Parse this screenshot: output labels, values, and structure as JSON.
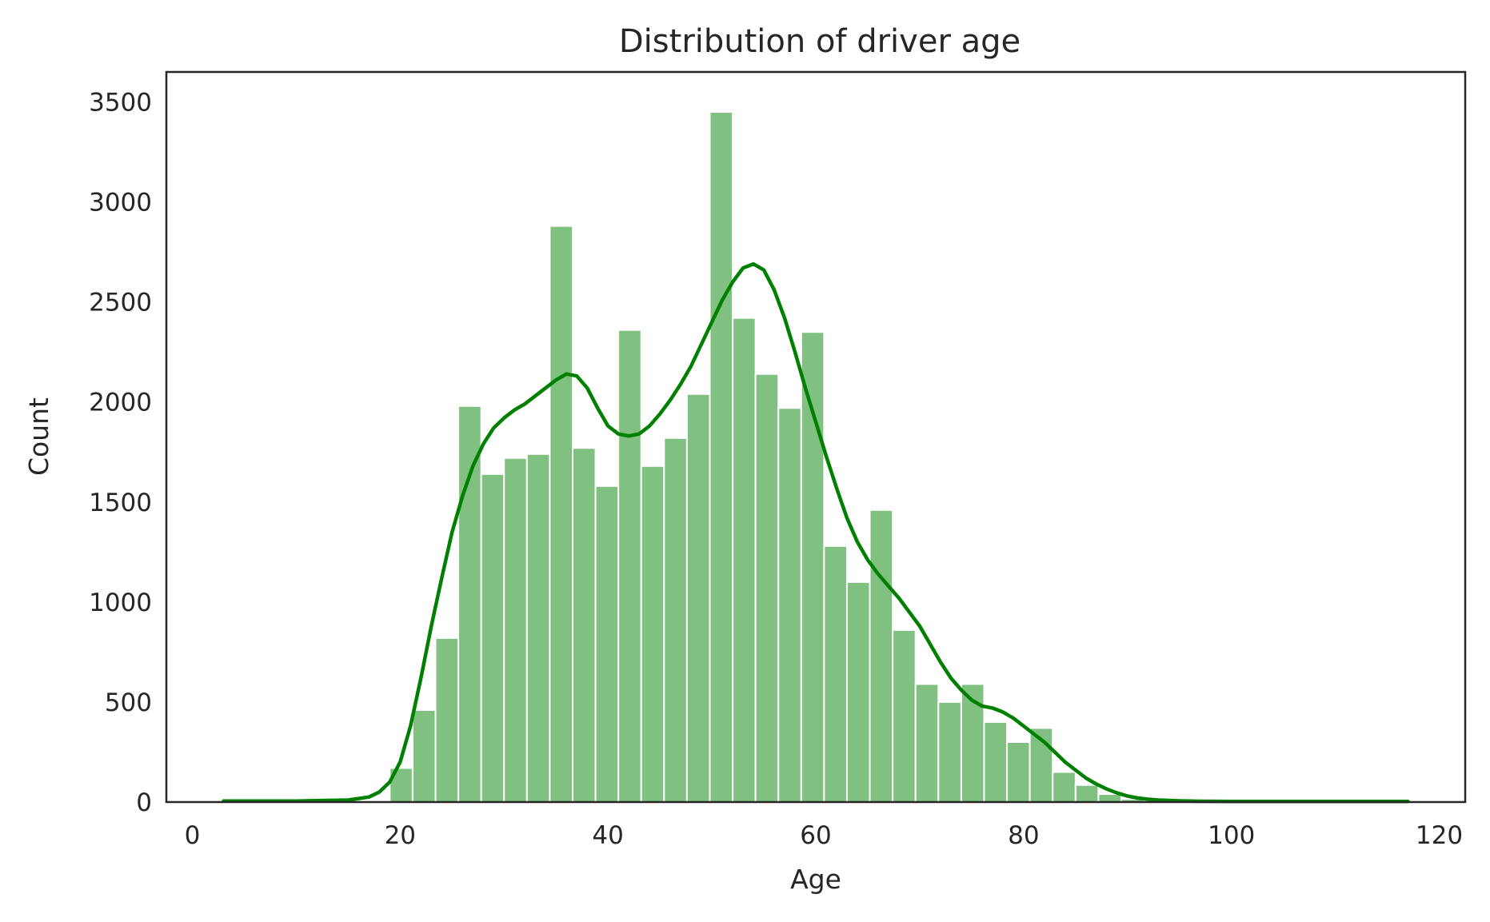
{
  "chart_data": {
    "type": "bar",
    "title": "Distribution of driver age",
    "xlabel": "Age",
    "ylabel": "Count",
    "xlim": [
      -2.5,
      122.5
    ],
    "ylim": [
      0,
      3650
    ],
    "grid": false,
    "bar_color": "#80c080",
    "line_color": "#008000",
    "x_ticks": [
      0,
      20,
      40,
      60,
      80,
      100,
      120
    ],
    "y_ticks": [
      0,
      500,
      1000,
      1500,
      2000,
      2500,
      3000,
      3500
    ],
    "bins": [
      {
        "x0": 19.0,
        "x1": 21.2,
        "count": 170
      },
      {
        "x0": 21.2,
        "x1": 23.4,
        "count": 460
      },
      {
        "x0": 23.4,
        "x1": 25.6,
        "count": 820
      },
      {
        "x0": 25.6,
        "x1": 27.8,
        "count": 1980
      },
      {
        "x0": 27.8,
        "x1": 30.0,
        "count": 1640
      },
      {
        "x0": 30.0,
        "x1": 32.2,
        "count": 1720
      },
      {
        "x0": 32.2,
        "x1": 34.4,
        "count": 1740
      },
      {
        "x0": 34.4,
        "x1": 36.6,
        "count": 2880
      },
      {
        "x0": 36.6,
        "x1": 38.8,
        "count": 1770
      },
      {
        "x0": 38.8,
        "x1": 41.0,
        "count": 1580
      },
      {
        "x0": 41.0,
        "x1": 43.2,
        "count": 2360
      },
      {
        "x0": 43.2,
        "x1": 45.4,
        "count": 1680
      },
      {
        "x0": 45.4,
        "x1": 47.6,
        "count": 1820
      },
      {
        "x0": 47.6,
        "x1": 49.8,
        "count": 2040
      },
      {
        "x0": 49.8,
        "x1": 52.0,
        "count": 3450
      },
      {
        "x0": 52.0,
        "x1": 54.2,
        "count": 2420
      },
      {
        "x0": 54.2,
        "x1": 56.4,
        "count": 2140
      },
      {
        "x0": 56.4,
        "x1": 58.6,
        "count": 1970
      },
      {
        "x0": 58.6,
        "x1": 60.8,
        "count": 2350
      },
      {
        "x0": 60.8,
        "x1": 63.0,
        "count": 1280
      },
      {
        "x0": 63.0,
        "x1": 65.2,
        "count": 1100
      },
      {
        "x0": 65.2,
        "x1": 67.4,
        "count": 1460
      },
      {
        "x0": 67.4,
        "x1": 69.6,
        "count": 860
      },
      {
        "x0": 69.6,
        "x1": 71.8,
        "count": 590
      },
      {
        "x0": 71.8,
        "x1": 74.0,
        "count": 500
      },
      {
        "x0": 74.0,
        "x1": 76.2,
        "count": 590
      },
      {
        "x0": 76.2,
        "x1": 78.4,
        "count": 400
      },
      {
        "x0": 78.4,
        "x1": 80.6,
        "count": 300
      },
      {
        "x0": 80.6,
        "x1": 82.8,
        "count": 370
      },
      {
        "x0": 82.8,
        "x1": 85.0,
        "count": 150
      },
      {
        "x0": 85.0,
        "x1": 87.2,
        "count": 85
      },
      {
        "x0": 87.2,
        "x1": 89.4,
        "count": 40
      },
      {
        "x0": 89.4,
        "x1": 91.6,
        "count": 15
      }
    ],
    "kde": {
      "x": [
        3,
        10,
        15,
        17,
        18,
        19,
        20,
        21,
        22,
        23,
        24,
        25,
        26,
        27,
        28,
        29,
        30,
        31,
        32,
        33,
        34,
        35,
        36,
        37,
        38,
        39,
        40,
        41,
        42,
        43,
        44,
        45,
        46,
        47,
        48,
        49,
        50,
        51,
        52,
        53,
        54,
        55,
        56,
        57,
        58,
        59,
        60,
        61,
        62,
        63,
        64,
        65,
        66,
        67,
        68,
        69,
        70,
        71,
        72,
        73,
        74,
        75,
        76,
        77,
        78,
        79,
        80,
        81,
        82,
        83,
        84,
        85,
        86,
        87,
        88,
        89,
        90,
        91,
        92,
        93,
        95,
        97,
        100,
        105,
        110,
        117
      ],
      "y": [
        5,
        5,
        10,
        25,
        50,
        100,
        200,
        380,
        620,
        880,
        1120,
        1350,
        1530,
        1680,
        1790,
        1870,
        1920,
        1960,
        1990,
        2030,
        2070,
        2110,
        2140,
        2130,
        2070,
        1970,
        1880,
        1840,
        1830,
        1840,
        1880,
        1940,
        2010,
        2090,
        2180,
        2290,
        2400,
        2510,
        2600,
        2670,
        2690,
        2660,
        2560,
        2420,
        2250,
        2070,
        1900,
        1730,
        1570,
        1420,
        1300,
        1210,
        1140,
        1080,
        1020,
        950,
        880,
        790,
        700,
        620,
        560,
        510,
        480,
        470,
        450,
        420,
        380,
        340,
        300,
        250,
        200,
        160,
        120,
        90,
        65,
        45,
        30,
        20,
        14,
        10,
        6,
        4,
        3,
        3,
        3,
        3
      ]
    }
  }
}
